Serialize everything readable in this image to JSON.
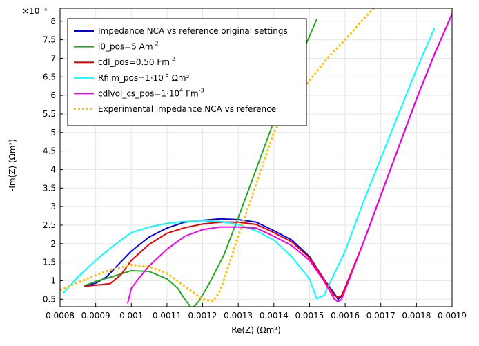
{
  "chart_data": {
    "type": "line",
    "title": "",
    "xlabel": "Re(Z) (Ωm²)",
    "ylabel": "-Im(Z) (Ωm²)",
    "y_multiplier": "×10⁻⁴",
    "xlim": [
      0.0008,
      0.0019
    ],
    "ylim": [
      0.3,
      8.35
    ],
    "grid": true,
    "legend_position": "top-left",
    "x_ticks": [
      0.0008,
      0.0009,
      0.001,
      0.0011,
      0.0012,
      0.0013,
      0.0014,
      0.0015,
      0.0016,
      0.0017,
      0.0018,
      0.0019
    ],
    "x_tick_labels": [
      "0.0008",
      "0.0009",
      "0.001",
      "0.0011",
      "0.0012",
      "0.0013",
      "0.0014",
      "0.0015",
      "0.0016",
      "0.0017",
      "0.0018",
      "0.0019"
    ],
    "y_ticks": [
      0.5,
      1,
      1.5,
      2,
      2.5,
      3,
      3.5,
      4,
      4.5,
      5,
      5.5,
      6,
      6.5,
      7,
      7.5,
      8
    ],
    "y_tick_labels": [
      "0.5",
      "1",
      "1.5",
      "2",
      "2.5",
      "3",
      "3.5",
      "4",
      "4.5",
      "5",
      "5.5",
      "6",
      "6.5",
      "7",
      "7.5",
      "8"
    ],
    "series": [
      {
        "name": "Impedance NCA vs reference original settings",
        "label_main": "Impedance NCA vs reference original settings",
        "label_sup": "",
        "label_tail": "",
        "color": "#0000ee",
        "dashed": false,
        "x": [
          0.00087,
          0.0009,
          0.00093,
          0.00097,
          0.001,
          0.00105,
          0.0011,
          0.00115,
          0.0012,
          0.00125,
          0.0013,
          0.00135,
          0.0014,
          0.00145,
          0.0015,
          0.00154,
          0.00157,
          0.00158,
          0.00159,
          0.0016,
          0.00165,
          0.0017,
          0.00175,
          0.0018,
          0.00185,
          0.0019
        ],
        "y": [
          0.87,
          0.93,
          1.1,
          1.5,
          1.8,
          2.18,
          2.42,
          2.58,
          2.63,
          2.67,
          2.65,
          2.58,
          2.35,
          2.1,
          1.65,
          1.05,
          0.65,
          0.5,
          0.58,
          0.8,
          2.0,
          3.3,
          4.6,
          5.9,
          7.1,
          8.2
        ]
      },
      {
        "name": "i0_pos=5 Am^-2",
        "label_main": "i0_pos=5 Am",
        "label_sup": "-2",
        "label_tail": "",
        "color": "#22aa22",
        "dashed": false,
        "x": [
          0.00087,
          0.0009,
          0.00095,
          0.001,
          0.00105,
          0.0011,
          0.00113,
          0.00115,
          0.00117,
          0.00119,
          0.00122,
          0.00126,
          0.0013,
          0.00135,
          0.0014,
          0.00145,
          0.0015,
          0.00152
        ],
        "y": [
          0.87,
          0.98,
          1.12,
          1.27,
          1.25,
          1.05,
          0.8,
          0.5,
          0.25,
          0.45,
          0.95,
          1.7,
          2.7,
          4.0,
          5.3,
          6.5,
          7.6,
          8.05
        ]
      },
      {
        "name": "cdl_pos=0.50 Fm^-2",
        "label_main": "cdl_pos=0.50 Fm",
        "label_sup": "-2",
        "label_tail": "",
        "color": "#ee0000",
        "dashed": false,
        "x": [
          0.00087,
          0.0009,
          0.00094,
          0.00097,
          0.001,
          0.00105,
          0.0011,
          0.00115,
          0.0012,
          0.00125,
          0.0013,
          0.00135,
          0.0014,
          0.00145,
          0.0015,
          0.00154,
          0.00157,
          0.00158,
          0.00159,
          0.0016,
          0.00165,
          0.0017,
          0.00175,
          0.0018,
          0.00185,
          0.0019
        ],
        "y": [
          0.85,
          0.88,
          0.92,
          1.15,
          1.55,
          1.98,
          2.28,
          2.43,
          2.53,
          2.58,
          2.58,
          2.52,
          2.3,
          2.05,
          1.62,
          1.05,
          0.6,
          0.55,
          0.6,
          0.82,
          2.0,
          3.3,
          4.6,
          5.9,
          7.1,
          8.2
        ]
      },
      {
        "name": "Rfilm_pos=1·10^-5 Ωm^2",
        "label_main": "Rfilm_pos=1·10",
        "label_sup": "-5",
        "label_tail": " Ωm²",
        "color": "#00ffff",
        "dashed": false,
        "x": [
          0.00081,
          0.00085,
          0.0009,
          0.00095,
          0.001,
          0.00105,
          0.0011,
          0.00115,
          0.0012,
          0.00125,
          0.0013,
          0.00135,
          0.0014,
          0.00145,
          0.0015,
          0.00152,
          0.00154,
          0.0016,
          0.00165,
          0.0017,
          0.00175,
          0.0018,
          0.00185
        ],
        "y": [
          0.68,
          1.1,
          1.55,
          1.95,
          2.3,
          2.45,
          2.55,
          2.6,
          2.62,
          2.6,
          2.52,
          2.35,
          2.1,
          1.65,
          1.05,
          0.52,
          0.6,
          1.8,
          3.1,
          4.3,
          5.5,
          6.7,
          7.8
        ]
      },
      {
        "name": "cdlvol_cs_pos=1·10^4 Fm^-3",
        "label_main": "cdlvol_cs_pos=1·10",
        "label_sup": "4",
        "label_tail": " Fm",
        "label_sup2": "-3",
        "color": "#ee00ee",
        "dashed": false,
        "x": [
          0.00099,
          0.001,
          0.00102,
          0.00105,
          0.0011,
          0.00115,
          0.0012,
          0.00125,
          0.0013,
          0.00135,
          0.0014,
          0.00145,
          0.0015,
          0.00154,
          0.00157,
          0.00158,
          0.00159,
          0.0016,
          0.00165,
          0.0017,
          0.00175,
          0.0018,
          0.00185,
          0.0019
        ],
        "y": [
          0.4,
          0.8,
          1.05,
          1.4,
          1.85,
          2.2,
          2.38,
          2.45,
          2.45,
          2.42,
          2.2,
          1.95,
          1.55,
          1.0,
          0.5,
          0.43,
          0.5,
          0.75,
          2.0,
          3.3,
          4.6,
          5.9,
          7.1,
          8.2
        ]
      },
      {
        "name": "Experimental impedance NCA vs reference",
        "label_main": "Experimental impedance NCA vs reference",
        "label_sup": "",
        "label_tail": "",
        "color": "#ffc000",
        "dashed": true,
        "x": [
          0.0008,
          0.00085,
          0.0009,
          0.00095,
          0.001,
          0.00105,
          0.0011,
          0.00115,
          0.0012,
          0.00123,
          0.00125,
          0.0013,
          0.00135,
          0.0014,
          0.00145,
          0.0015,
          0.00155,
          0.0016,
          0.00165,
          0.00168
        ],
        "y": [
          0.75,
          0.95,
          1.15,
          1.32,
          1.43,
          1.38,
          1.2,
          0.85,
          0.5,
          0.45,
          0.75,
          2.2,
          3.6,
          5.0,
          5.8,
          6.4,
          7.0,
          7.5,
          8.05,
          8.35
        ]
      }
    ]
  }
}
